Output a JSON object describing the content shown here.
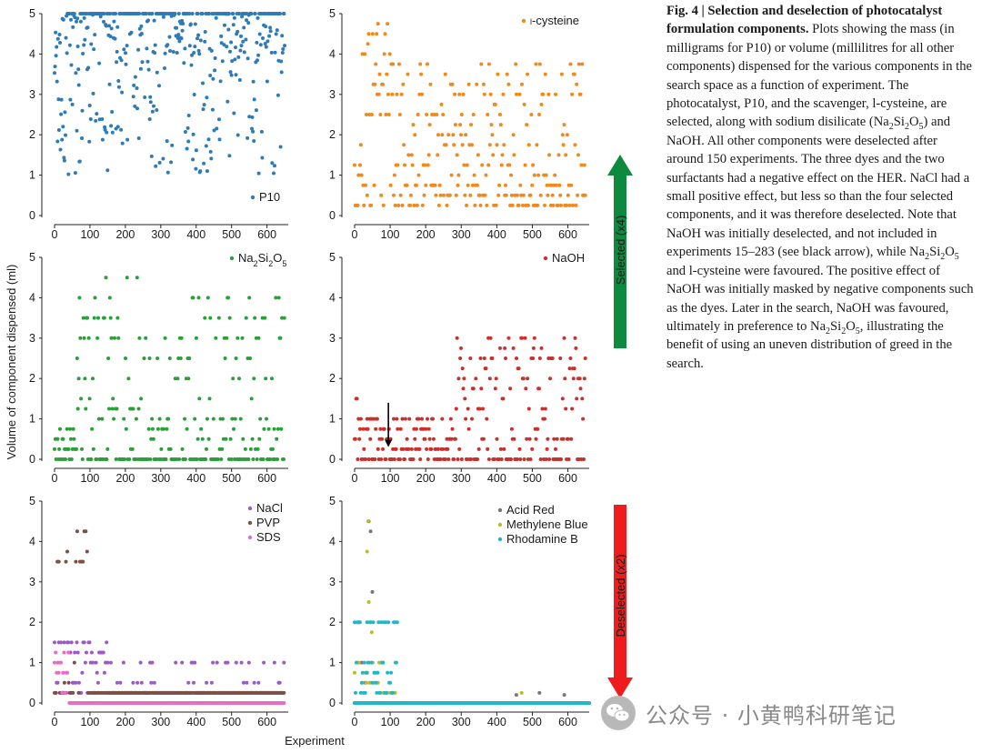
{
  "figure": {
    "y_axis_label": "Volume of component dispensed (ml)",
    "x_axis_label": "Experiment",
    "selected_label": "Selected (x4)",
    "deselected_label": "Deselected (x2)"
  },
  "caption": {
    "title": "Fig. 4 | Selection and deselection of photocatalyst formulation components.",
    "body_1": "Plots showing the mass (in milligrams for P10) or volume (millilitres for all other components) dispensed for the various components in the search space as a function of experiment. The photocatalyst, P10, and the scavenger, l-cysteine, are selected, along with sodium disilicate (Na",
    "body_2": "Si",
    "body_3": "O",
    "body_4": ") and NaOH. All other components were deselected after around 150 experiments. The three dyes and the two surfactants had a negative effect on the HER. NaCl had a small positive effect, but less so than the four selected components, and it was therefore deselected. Note that NaOH was initially deselected, and not included in experiments 15–283 (see black arrow), while Na",
    "body_5": "Si",
    "body_6": "O",
    "body_7": " and l-cysteine were favoured. The positive effect of NaOH was initially masked by negative components such as the dyes. Later in the search, NaOH was favoured, ultimately in preference to Na",
    "body_8": "Si",
    "body_9": "O",
    "body_10": ", illustrating the benefit of using an uneven distribution of greed in the search.",
    "sub_2": "2",
    "sub_5": "5"
  },
  "watermark": {
    "text": "公众号 · 小黄鸭科研笔记",
    "icon": "wechat-icon"
  },
  "chart_data": [
    {
      "id": "p10",
      "type": "scatter",
      "xlim": [
        0,
        660
      ],
      "ylim": [
        0,
        5
      ],
      "xticks": [
        0,
        100,
        200,
        300,
        400,
        500,
        600
      ],
      "yticks": [
        0,
        1,
        2,
        3,
        4,
        5
      ],
      "legend": "top-right-bottom",
      "series": [
        {
          "name": "P10",
          "color": "#2e7bb8",
          "density": 4.0,
          "pattern": "p10"
        }
      ]
    },
    {
      "id": "cys",
      "type": "scatter",
      "xlim": [
        0,
        660
      ],
      "ylim": [
        0,
        5
      ],
      "xticks": [
        0,
        100,
        200,
        300,
        400,
        500,
        600
      ],
      "yticks": [
        0,
        1,
        2,
        3,
        4,
        5
      ],
      "legend": "top-right",
      "series": [
        {
          "name": "l-cysteine",
          "color": "#f08a1c",
          "density": 2.6,
          "pattern": "cys"
        }
      ]
    },
    {
      "id": "na2",
      "type": "scatter",
      "xlim": [
        0,
        660
      ],
      "ylim": [
        0,
        5
      ],
      "xticks": [
        0,
        100,
        200,
        300,
        400,
        500,
        600
      ],
      "yticks": [
        0,
        1,
        2,
        3,
        4,
        5
      ],
      "legend": "top-right",
      "series": [
        {
          "name": "Na2Si2O5",
          "color": "#2c9e3a",
          "density": 2.6,
          "pattern": "na2"
        }
      ]
    },
    {
      "id": "naoh",
      "type": "scatter",
      "xlim": [
        0,
        660
      ],
      "ylim": [
        0,
        5
      ],
      "xticks": [
        0,
        100,
        200,
        300,
        400,
        500,
        600
      ],
      "yticks": [
        0,
        1,
        2,
        3,
        4,
        5
      ],
      "legend": "top-right",
      "annotation": {
        "text": "arrow",
        "x": 95,
        "from_y": 1.4,
        "to_y": 0.3
      },
      "series": [
        {
          "name": "NaOH",
          "color": "#c9312c",
          "density": 2.6,
          "pattern": "naoh"
        }
      ]
    },
    {
      "id": "salts",
      "type": "scatter",
      "xlim": [
        0,
        660
      ],
      "ylim": [
        0,
        5
      ],
      "xticks": [
        0,
        100,
        200,
        300,
        400,
        500,
        600
      ],
      "yticks": [
        0,
        1,
        2,
        3,
        4,
        5
      ],
      "legend": "top-right",
      "series": [
        {
          "name": "NaCl",
          "color": "#9b59c9",
          "pattern": "nacl"
        },
        {
          "name": "PVP",
          "color": "#7a5147",
          "pattern": "pvp"
        },
        {
          "name": "SDS",
          "color": "#e86bc4",
          "pattern": "sds"
        }
      ]
    },
    {
      "id": "dyes",
      "type": "scatter",
      "xlim": [
        0,
        660
      ],
      "ylim": [
        0,
        5
      ],
      "xticks": [
        0,
        100,
        200,
        300,
        400,
        500,
        600
      ],
      "yticks": [
        0,
        1,
        2,
        3,
        4,
        5
      ],
      "legend": "top-right",
      "series": [
        {
          "name": "Acid Red",
          "color": "#777777",
          "pattern": "acid"
        },
        {
          "name": "Methylene Blue",
          "color": "#b9bd2c",
          "pattern": "mb"
        },
        {
          "name": "Rhodamine B",
          "color": "#1fb8c9",
          "pattern": "rb"
        }
      ]
    }
  ]
}
